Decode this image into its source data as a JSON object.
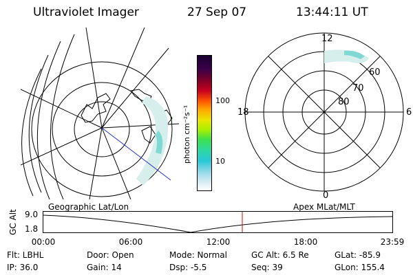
{
  "header": {
    "title": "Ultraviolet Imager",
    "date": "27 Sep 07",
    "time": "13:44:11 UT"
  },
  "geo_panel": {
    "label": "Geographic Lat/Lon"
  },
  "polar_panel": {
    "label": "Apex MLat/MLT",
    "mlt_labels": [
      "12",
      "18",
      "6",
      "0"
    ],
    "lat_labels": [
      "60",
      "70",
      "80"
    ]
  },
  "colorbar": {
    "ticks": [
      "100",
      "10"
    ],
    "unit_label": "photon cm⁻²s⁻¹"
  },
  "altitude_plot": {
    "ylabel": "GC Alt",
    "ymax_label": "9.0",
    "ymin_label": "1.8",
    "x_ticks": [
      "00:00",
      "06:00",
      "12:00",
      "18:00",
      "23:59"
    ],
    "marker_time_fraction": 0.57
  },
  "info": {
    "filter": "Flt: LBHL",
    "door": "Door: Open",
    "mode": "Mode: Normal",
    "gc_alt": "GC Alt: 6.5 Re",
    "glat": "GLat: -85.9",
    "ip": "IP: 36.0",
    "gain": "Gain: 14",
    "dsp": "Dsp:    -5.5",
    "seq": "Seq: 39",
    "glon": "GLon: 155.4"
  },
  "colors": {
    "aurora": "#d6efec",
    "aurora_strong": "#7fd9d2",
    "marker": "#e00000",
    "blue_line": "#2233cc"
  }
}
